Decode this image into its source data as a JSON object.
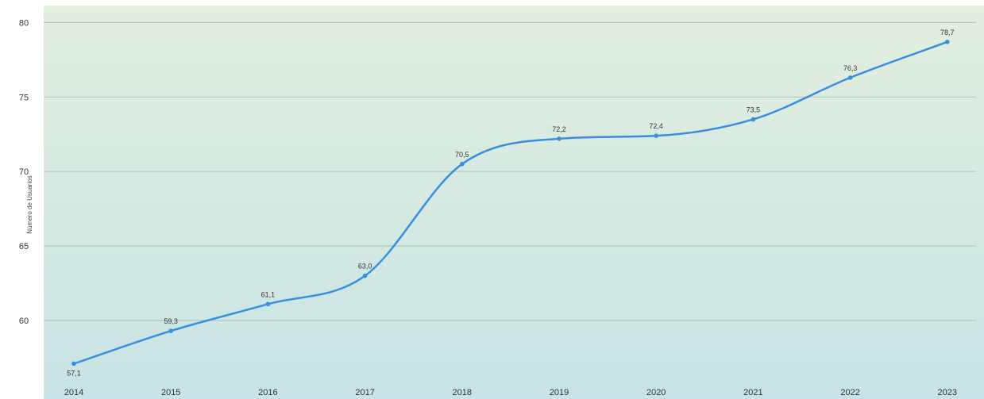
{
  "chart_data": {
    "type": "line",
    "title": "",
    "xlabel": "",
    "ylabel": "Número de Usuarios",
    "categories": [
      "2014",
      "2015",
      "2016",
      "2017",
      "2018",
      "2019",
      "2020",
      "2021",
      "2022",
      "2023"
    ],
    "series": [
      {
        "values": [
          57.1,
          59.3,
          61.1,
          63.0,
          70.5,
          72.2,
          72.4,
          73.5,
          76.3,
          78.7
        ],
        "labels": [
          "57,1",
          "59,3",
          "61,1",
          "63,0",
          "70,5",
          "72,2",
          "72,4",
          "73,5",
          "76,3",
          "78,7"
        ],
        "color": "#3a8ee0"
      }
    ],
    "y_ticks": [
      "60",
      "65",
      "70",
      "75",
      "80"
    ],
    "ylim": [
      57,
      81
    ],
    "grid": true,
    "background_top": "#e3efdf",
    "background_bottom": "#c8e3e5"
  }
}
